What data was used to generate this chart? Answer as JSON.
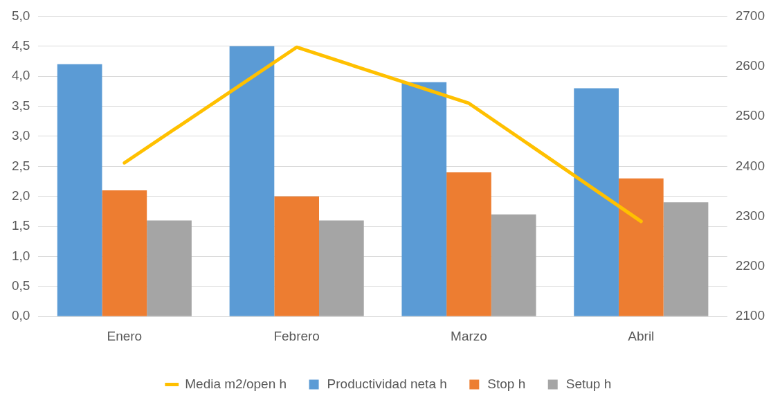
{
  "chart_data": {
    "type": "bar",
    "categories": [
      "Enero",
      "Febrero",
      "Marzo",
      "Abril"
    ],
    "series": [
      {
        "name": "Productividad neta h",
        "color": "#5b9bd5",
        "values": [
          4.2,
          4.5,
          3.9,
          3.8
        ]
      },
      {
        "name": "Stop h",
        "color": "#ed7d31",
        "values": [
          2.1,
          2.0,
          2.4,
          2.3
        ]
      },
      {
        "name": "Setup h",
        "color": "#a5a5a5",
        "values": [
          1.6,
          1.6,
          1.7,
          1.9
        ]
      },
      {
        "name": "Media m2/open h",
        "color": "#ffc000",
        "type": "line",
        "axis": "y2",
        "values": [
          2407,
          2638,
          2526,
          2290
        ]
      }
    ],
    "ylim": [
      0,
      5
    ],
    "yticks": [
      {
        "value": 0,
        "label": "0,0"
      },
      {
        "value": 0.5,
        "label": "0,5"
      },
      {
        "value": 1,
        "label": "1,0"
      },
      {
        "value": 1.5,
        "label": "1,5"
      },
      {
        "value": 2,
        "label": "2,0"
      },
      {
        "value": 2.5,
        "label": "2,5"
      },
      {
        "value": 3,
        "label": "3,0"
      },
      {
        "value": 3.5,
        "label": "3,5"
      },
      {
        "value": 4,
        "label": "4,0"
      },
      {
        "value": 4.5,
        "label": "4,5"
      },
      {
        "value": 5,
        "label": "5,0"
      }
    ],
    "y2lim": [
      2100,
      2700
    ],
    "y2ticks": [
      2100,
      2200,
      2300,
      2400,
      2500,
      2600,
      2700
    ],
    "grid": "y",
    "legend": "bottom",
    "marker": "none",
    "line_style": "solid"
  }
}
